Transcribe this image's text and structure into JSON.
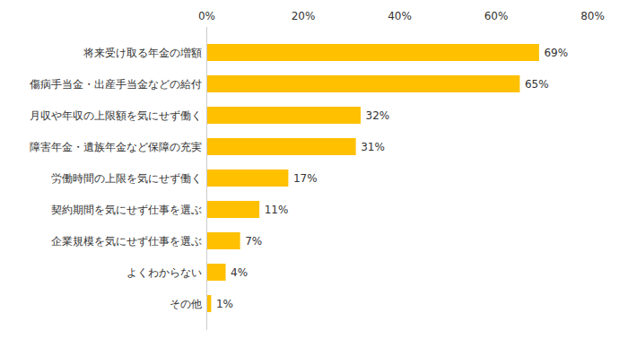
{
  "chart_data": {
    "type": "bar",
    "orientation": "horizontal",
    "categories": [
      "その他",
      "よくわからない",
      "企業規模を気にせず仕事を選ぶ",
      "契約期間を気にせず仕事を選ぶ",
      "労働時間の上限を気にせず働く",
      "障害年金・遺族年金など保障の充実",
      "月収や年収の上限額を気にせず働く",
      "傷病手当金・出産手当金などの給付",
      "将来受け取る年金の増額"
    ],
    "values": [
      1,
      4,
      7,
      11,
      17,
      31,
      32,
      65,
      69
    ],
    "value_labels": [
      "1%",
      "4%",
      "7%",
      "11%",
      "17%",
      "31%",
      "32%",
      "65%",
      "69%"
    ],
    "data_labels": true,
    "color": "#FFC000",
    "xlim": [
      0,
      80
    ],
    "xticks": [
      {
        "value": 0,
        "label": "0%"
      },
      {
        "value": 20,
        "label": "20%"
      },
      {
        "value": 40,
        "label": "40%"
      },
      {
        "value": 60,
        "label": "60%"
      },
      {
        "value": 80,
        "label": "80%"
      }
    ],
    "grid": false
  }
}
